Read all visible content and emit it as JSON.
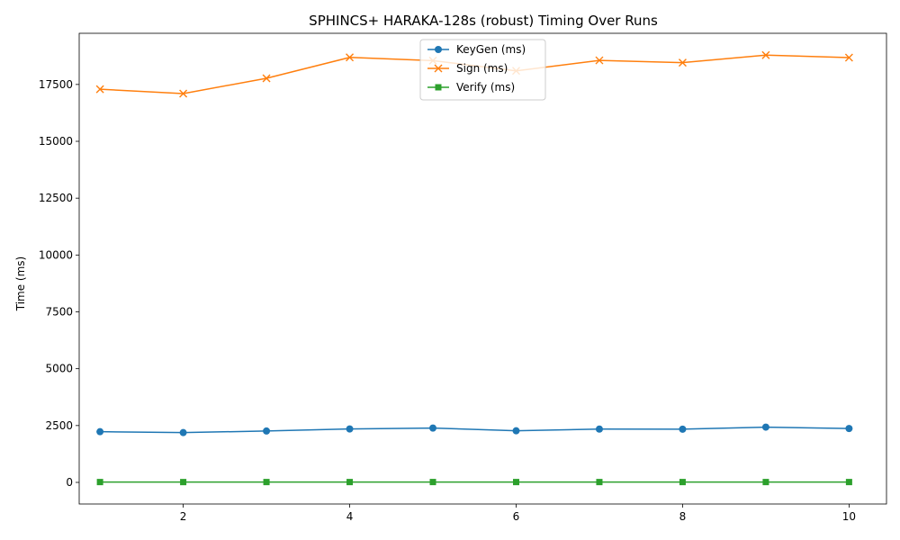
{
  "chart_data": {
    "type": "line",
    "title": "SPHINCS+ HARAKA-128s (robust) Timing Over Runs",
    "xlabel": "",
    "ylabel": "Time (ms)",
    "xlim": [
      0.75,
      10.45
    ],
    "ylim": [
      -950,
      19750
    ],
    "xticks": [
      2,
      4,
      6,
      8,
      10
    ],
    "yticks": [
      0,
      2500,
      5000,
      7500,
      10000,
      12500,
      15000,
      17500
    ],
    "grid": false,
    "legend_position": "top-center",
    "x": [
      1,
      2,
      3,
      4,
      5,
      6,
      7,
      8,
      9,
      10
    ],
    "series": [
      {
        "name": "KeyGen (ms)",
        "color": "#1f77b4",
        "marker": "circle",
        "values": [
          2230,
          2190,
          2260,
          2350,
          2390,
          2270,
          2345,
          2340,
          2430,
          2370
        ]
      },
      {
        "name": "Sign (ms)",
        "color": "#ff7f0e",
        "marker": "x",
        "values": [
          17290,
          17100,
          17770,
          18690,
          18550,
          18100,
          18560,
          18460,
          18790,
          18680
        ]
      },
      {
        "name": "Verify (ms)",
        "color": "#2ca02c",
        "marker": "square",
        "values": [
          15,
          14,
          15,
          15,
          16,
          15,
          15,
          15,
          15,
          15
        ]
      }
    ]
  }
}
